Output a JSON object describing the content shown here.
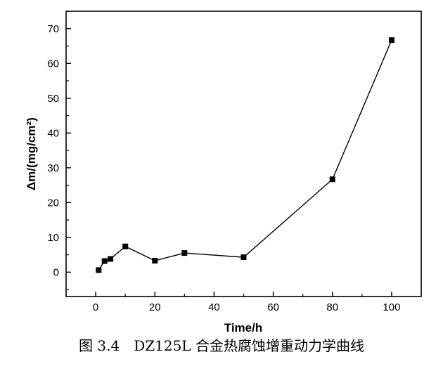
{
  "chart_data": {
    "type": "line",
    "xlabel": "Time/h",
    "ylabel": "Δm/(mg/cm²)",
    "xlim": [
      -10,
      110
    ],
    "ylim": [
      -7,
      75
    ],
    "xticks": [
      0,
      20,
      40,
      60,
      80,
      100
    ],
    "yticks": [
      0,
      10,
      20,
      30,
      40,
      50,
      60,
      70
    ],
    "grid": false,
    "legend": "none",
    "marker": "square",
    "line_color": "#000000",
    "series": [
      {
        "x": [
          1,
          3,
          5,
          10,
          20,
          30,
          50,
          80,
          100
        ],
        "y": [
          0.6,
          3.2,
          3.8,
          7.4,
          3.3,
          5.5,
          4.3,
          26.7,
          66.7
        ]
      }
    ]
  },
  "caption": "图 3.4　DZ125L 合金热腐蚀增重动力学曲线"
}
